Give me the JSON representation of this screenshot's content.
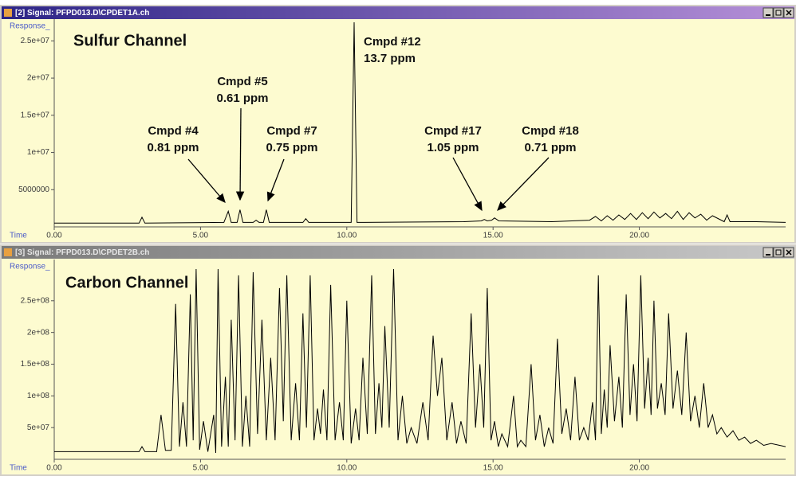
{
  "windows": [
    {
      "title": "[2] Signal: PFPD013.D\\CPDET1A.ch"
    },
    {
      "title": "[3] Signal: PFPD013.D\\CPDET2B.ch"
    }
  ],
  "chart_data": [
    {
      "type": "line",
      "title": "Sulfur Channel",
      "x_label": "Time",
      "y_label": "Response_",
      "color": "#000000",
      "xlim": [
        0,
        25
      ],
      "ylim": [
        0,
        27500000.0
      ],
      "xticks": [
        {
          "value": 0,
          "label": "0.00"
        },
        {
          "value": 5,
          "label": "5.00"
        },
        {
          "value": 10,
          "label": "10.00"
        },
        {
          "value": 15,
          "label": "15.00"
        },
        {
          "value": 20,
          "label": "20.00"
        }
      ],
      "yticks": [
        5000000,
        {
          "value": 10000000.0,
          "label": "1e+07"
        },
        {
          "value": 15000000.0,
          "label": "1.5e+07"
        },
        {
          "value": 20000000.0,
          "label": "2e+07"
        },
        {
          "value": 25000000.0,
          "label": "2.5e+07"
        }
      ],
      "annotations": [
        {
          "compound": "Cmpd #4",
          "concentration": "0.81 ppm"
        },
        {
          "compound": "Cmpd #5",
          "concentration": "0.61 ppm"
        },
        {
          "compound": "Cmpd #7",
          "concentration": "0.75 ppm"
        },
        {
          "compound": "Cmpd #12",
          "concentration": "13.7 ppm"
        },
        {
          "compound": "Cmpd #17",
          "concentration": "1.05 ppm"
        },
        {
          "compound": "Cmpd #18",
          "concentration": "0.71 ppm"
        }
      ],
      "x": [
        0,
        2.9,
        3.0,
        3.1,
        5.8,
        5.95,
        6.05,
        6.25,
        6.35,
        6.45,
        6.8,
        6.9,
        7.0,
        7.15,
        7.25,
        7.35,
        8.5,
        8.6,
        8.7,
        10.15,
        10.25,
        10.35,
        10.6,
        14.0,
        14.6,
        14.7,
        14.8,
        14.95,
        15.05,
        15.2,
        17.0,
        18.3,
        18.5,
        18.7,
        18.9,
        19.1,
        19.3,
        19.5,
        19.7,
        19.9,
        20.1,
        20.3,
        20.5,
        20.7,
        20.9,
        21.1,
        21.3,
        21.5,
        21.7,
        21.9,
        22.1,
        22.3,
        22.5,
        22.9,
        23.0,
        23.1,
        24.0,
        25.0
      ],
      "values": [
        500000.0,
        500000.0,
        1300000.0,
        500000.0,
        600000.0,
        2100000.0,
        600000.0,
        600000.0,
        2300000.0,
        600000.0,
        600000.0,
        900000.0,
        600000.0,
        600000.0,
        2300000.0,
        600000.0,
        600000.0,
        1100000.0,
        600000.0,
        600000.0,
        27500000.0,
        600000.0,
        600000.0,
        700000.0,
        800000.0,
        1000000.0,
        800000.0,
        900000.0,
        1200000.0,
        800000.0,
        700000.0,
        900000.0,
        1400000.0,
        800000.0,
        1500000.0,
        900000.0,
        1600000.0,
        1000000.0,
        1800000.0,
        1000000.0,
        1900000.0,
        1100000.0,
        2000000.0,
        1200000.0,
        1800000.0,
        1100000.0,
        2100000.0,
        1000000.0,
        1900000.0,
        1200000.0,
        1700000.0,
        900000.0,
        1500000.0,
        700000.0,
        1600000.0,
        700000.0,
        700000.0,
        600000.0
      ]
    },
    {
      "type": "line",
      "title": "Carbon Channel",
      "x_label": "Time",
      "y_label": "Response_",
      "color": "#000000",
      "xlim": [
        0,
        25
      ],
      "ylim": [
        0,
        310000000.0
      ],
      "xticks": [
        {
          "value": 0,
          "label": "0.00"
        },
        {
          "value": 5,
          "label": "5.00"
        },
        {
          "value": 10,
          "label": "10.00"
        },
        {
          "value": 15,
          "label": "15.00"
        },
        {
          "value": 20,
          "label": "20.00"
        }
      ],
      "yticks": [
        {
          "value": 50000000.0,
          "label": "5e+07"
        },
        {
          "value": 100000000.0,
          "label": "1e+08"
        },
        {
          "value": 150000000.0,
          "label": "1.5e+08"
        },
        {
          "value": 200000000.0,
          "label": "2e+08"
        },
        {
          "value": 250000000.0,
          "label": "2.5e+08"
        }
      ],
      "x": [
        0,
        2.9,
        3.0,
        3.1,
        3.5,
        3.65,
        3.8,
        4.0,
        4.15,
        4.28,
        4.4,
        4.52,
        4.65,
        4.75,
        4.85,
        4.97,
        5.1,
        5.25,
        5.45,
        5.52,
        5.6,
        5.72,
        5.85,
        5.95,
        6.05,
        6.18,
        6.3,
        6.43,
        6.55,
        6.68,
        6.8,
        6.95,
        7.1,
        7.25,
        7.4,
        7.55,
        7.7,
        7.83,
        7.95,
        8.1,
        8.25,
        8.38,
        8.5,
        8.62,
        8.75,
        8.88,
        9.0,
        9.1,
        9.2,
        9.32,
        9.45,
        9.6,
        9.75,
        9.88,
        10.0,
        10.15,
        10.3,
        10.42,
        10.55,
        10.7,
        10.85,
        10.98,
        11.1,
        11.2,
        11.3,
        11.45,
        11.6,
        11.75,
        11.9,
        12.05,
        12.2,
        12.4,
        12.6,
        12.78,
        12.95,
        13.1,
        13.25,
        13.42,
        13.6,
        13.75,
        13.9,
        14.08,
        14.25,
        14.4,
        14.55,
        14.68,
        14.8,
        14.93,
        15.05,
        15.18,
        15.3,
        15.5,
        15.7,
        15.83,
        15.95,
        16.12,
        16.3,
        16.45,
        16.6,
        16.75,
        16.9,
        17.05,
        17.2,
        17.35,
        17.5,
        17.65,
        17.8,
        17.95,
        18.1,
        18.25,
        18.4,
        18.5,
        18.6,
        18.7,
        18.8,
        18.9,
        19.0,
        19.15,
        19.3,
        19.42,
        19.55,
        19.68,
        19.8,
        19.92,
        20.05,
        20.18,
        20.3,
        20.4,
        20.5,
        20.62,
        20.75,
        20.88,
        21.0,
        21.15,
        21.3,
        21.45,
        21.6,
        21.75,
        21.9,
        22.05,
        22.2,
        22.35,
        22.5,
        22.65,
        22.8,
        23.0,
        23.2,
        23.4,
        23.6,
        23.8,
        24.0,
        24.25,
        24.5,
        25.0
      ],
      "values": [
        12000000.0,
        12000000.0,
        20000000.0,
        12000000.0,
        12000000.0,
        70000000.0,
        14000000.0,
        14000000.0,
        245000000.0,
        20000000.0,
        90000000.0,
        20000000.0,
        260000000.0,
        30000000.0,
        300000000.0,
        15000000.0,
        60000000.0,
        12000000.0,
        70000000.0,
        10000000.0,
        300000000.0,
        20000000.0,
        130000000.0,
        20000000.0,
        220000000.0,
        30000000.0,
        290000000.0,
        20000000.0,
        100000000.0,
        20000000.0,
        295000000.0,
        40000000.0,
        220000000.0,
        30000000.0,
        160000000.0,
        30000000.0,
        270000000.0,
        60000000.0,
        290000000.0,
        30000000.0,
        120000000.0,
        30000000.0,
        230000000.0,
        50000000.0,
        290000000.0,
        30000000.0,
        80000000.0,
        40000000.0,
        110000000.0,
        30000000.0,
        275000000.0,
        30000000.0,
        90000000.0,
        30000000.0,
        250000000.0,
        25000000.0,
        80000000.0,
        30000000.0,
        160000000.0,
        40000000.0,
        290000000.0,
        40000000.0,
        120000000.0,
        50000000.0,
        210000000.0,
        50000000.0,
        300000000.0,
        30000000.0,
        100000000.0,
        25000000.0,
        50000000.0,
        25000000.0,
        90000000.0,
        30000000.0,
        195000000.0,
        100000000.0,
        160000000.0,
        30000000.0,
        90000000.0,
        25000000.0,
        60000000.0,
        25000000.0,
        230000000.0,
        50000000.0,
        150000000.0,
        50000000.0,
        270000000.0,
        30000000.0,
        60000000.0,
        20000000.0,
        40000000.0,
        20000000.0,
        100000000.0,
        20000000.0,
        30000000.0,
        20000000.0,
        150000000.0,
        30000000.0,
        70000000.0,
        20000000.0,
        50000000.0,
        25000000.0,
        190000000.0,
        40000000.0,
        80000000.0,
        30000000.0,
        130000000.0,
        30000000.0,
        50000000.0,
        30000000.0,
        90000000.0,
        30000000.0,
        290000000.0,
        40000000.0,
        110000000.0,
        50000000.0,
        180000000.0,
        60000000.0,
        130000000.0,
        50000000.0,
        260000000.0,
        70000000.0,
        150000000.0,
        60000000.0,
        290000000.0,
        80000000.0,
        160000000.0,
        70000000.0,
        250000000.0,
        80000000.0,
        120000000.0,
        70000000.0,
        230000000.0,
        80000000.0,
        140000000.0,
        70000000.0,
        200000000.0,
        60000000.0,
        100000000.0,
        50000000.0,
        120000000.0,
        50000000.0,
        70000000.0,
        40000000.0,
        50000000.0,
        35000000.0,
        45000000.0,
        30000000.0,
        35000000.0,
        25000000.0,
        30000000.0,
        22000000.0,
        25000000.0,
        20000000.0
      ]
    }
  ]
}
